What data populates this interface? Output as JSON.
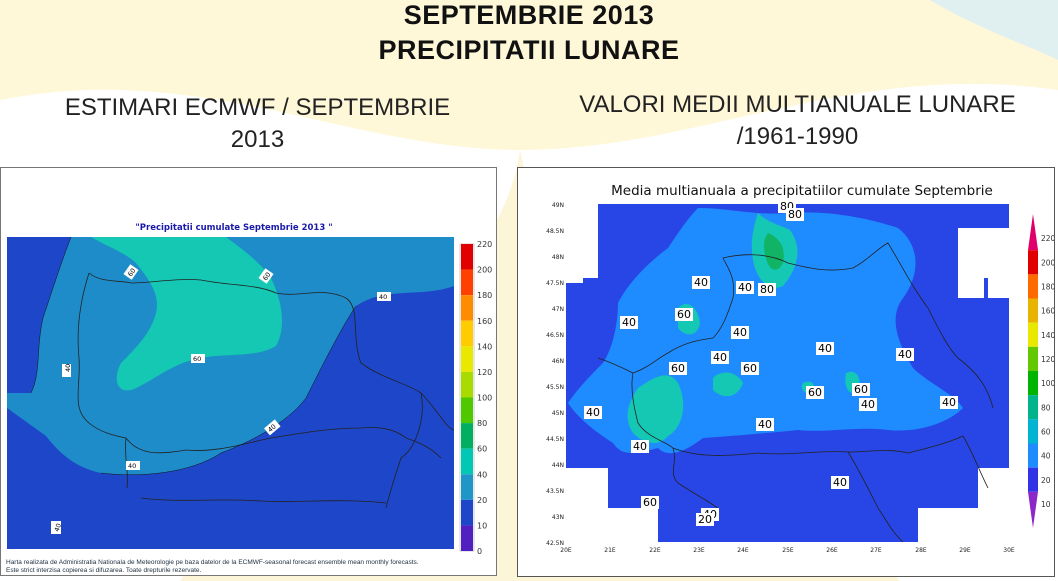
{
  "header": {
    "title_line1": "SEPTEMBRIE 2013",
    "title_line2": "PRECIPITATII LUNARE",
    "left_subtitle_line1": "ESTIMARI ECMWF / SEPTEMBRIE",
    "left_subtitle_line2": "2013",
    "right_subtitle_line1": "VALORI MEDII MULTIANUALE LUNARE",
    "right_subtitle_line2": "/1961-1990"
  },
  "left_map": {
    "title": "\"Precipitatii cumulate Septembrie 2013 \"",
    "legend_values": [
      "220",
      "200",
      "180",
      "160",
      "140",
      "120",
      "100",
      "80",
      "60",
      "40",
      "20",
      "10",
      "0"
    ],
    "legend_colors": [
      "#e00000",
      "#ff4000",
      "#ff8c00",
      "#ffcc00",
      "#e8e800",
      "#a8dc00",
      "#50c800",
      "#00b060",
      "#00c8b4",
      "#1e96c8",
      "#1e46c8",
      "#5020c0",
      "#8000b0"
    ],
    "contour_labels": [
      "60",
      "60",
      "40",
      "40",
      "60",
      "40",
      "40",
      "40"
    ],
    "footnote_line1": "Harta realizata de Administratia Nationala de Meteorologie pe baza datelor de la ECMWF-seasonal forecast ensemble mean monthly forecasts.",
    "footnote_line2": "Este strict interzisa copierea si difuzarea. Toate drepturile rezervate."
  },
  "right_map": {
    "title": "Media multianuala a precipitatiilor cumulate Septembrie",
    "lat_labels": [
      "49N",
      "48.5N",
      "48N",
      "47.5N",
      "47N",
      "46.5N",
      "46N",
      "45.5N",
      "45N",
      "44.5N",
      "44N",
      "43.5N",
      "43N",
      "42.5N"
    ],
    "lon_labels": [
      "20E",
      "21E",
      "22E",
      "23E",
      "24E",
      "25E",
      "26E",
      "27E",
      "28E",
      "29E",
      "30E"
    ],
    "legend_values": [
      "220",
      "200",
      "180",
      "160",
      "140",
      "120",
      "100",
      "80",
      "60",
      "40",
      "20",
      "10"
    ],
    "legend_colors": [
      "#e0006a",
      "#e00000",
      "#ff6a00",
      "#e8b400",
      "#e8e800",
      "#64c800",
      "#00b400",
      "#00b48c",
      "#00b4d2",
      "#1e8cff",
      "#3232e6",
      "#8c28c8"
    ],
    "contour_labels": [
      "80",
      "80",
      "80",
      "60",
      "40",
      "40",
      "40",
      "40",
      "40",
      "40",
      "40",
      "40",
      "60",
      "60",
      "60",
      "60",
      "40",
      "40",
      "40",
      "40",
      "60",
      "40",
      "40",
      "20"
    ]
  },
  "colors": {
    "c20_40_left": "#1e46c8",
    "c40_60_left": "#1e8cc8",
    "c60_80_left": "#14c8b4",
    "c20_40_right": "#2846e6",
    "c40_60_right": "#1e8cff",
    "c60_80_right": "#14c8b4",
    "c80_100_right": "#10b464"
  }
}
